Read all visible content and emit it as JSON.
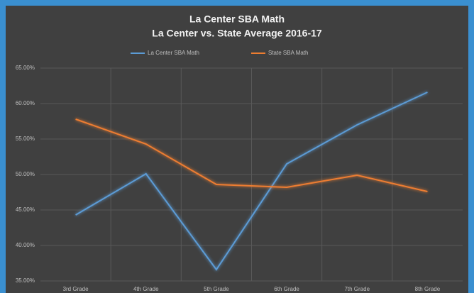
{
  "chart_data": {
    "type": "line",
    "title": "La Center SBA Math",
    "subtitle": "La Center vs. State Average 2016-17",
    "categories": [
      "3rd Grade",
      "4th Grade",
      "5th Grade",
      "6th Grade",
      "7th Grade",
      "8th Grade"
    ],
    "series": [
      {
        "name": "La Center SBA Math",
        "color": "#5b9bd5",
        "values": [
          44.3,
          50.1,
          36.6,
          51.5,
          57.0,
          61.6
        ]
      },
      {
        "name": "State SBA Math",
        "color": "#ed7d31",
        "values": [
          57.8,
          54.3,
          48.6,
          48.2,
          49.9,
          47.6
        ]
      }
    ],
    "ylim": [
      35,
      65
    ],
    "yticks": [
      {
        "value": 35,
        "label": "35.00%"
      },
      {
        "value": 40,
        "label": "40.00%"
      },
      {
        "value": 45,
        "label": "45.00%"
      },
      {
        "value": 50,
        "label": "50.00%"
      },
      {
        "value": 55,
        "label": "55.00%"
      },
      {
        "value": 60,
        "label": "60.00%"
      },
      {
        "value": 65,
        "label": "65.00%"
      }
    ],
    "grid": true,
    "legend": "top"
  }
}
